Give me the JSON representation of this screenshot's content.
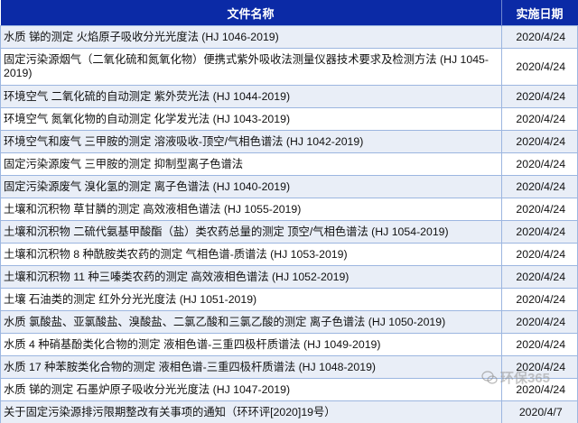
{
  "table": {
    "headers": [
      "文件名称",
      "实施日期"
    ],
    "rows": [
      {
        "name": "水质 锑的测定 火焰原子吸收分光光度法 (HJ 1046-2019)",
        "date": "2020/4/24"
      },
      {
        "name": "固定污染源烟气（二氧化硫和氮氧化物）便携式紫外吸收法测量仪器技术要求及检测方法 (HJ 1045-2019)",
        "date": "2020/4/24"
      },
      {
        "name": "环境空气 二氧化硫的自动测定 紫外荧光法 (HJ 1044-2019)",
        "date": "2020/4/24"
      },
      {
        "name": "环境空气 氮氧化物的自动测定 化学发光法 (HJ 1043-2019)",
        "date": "2020/4/24"
      },
      {
        "name": "环境空气和废气 三甲胺的测定 溶液吸收-顶空/气相色谱法 (HJ 1042-2019)",
        "date": "2020/4/24"
      },
      {
        "name": "固定污染源废气 三甲胺的测定 抑制型离子色谱法",
        "date": "2020/4/24"
      },
      {
        "name": "固定污染源废气 溴化氢的测定 离子色谱法 (HJ 1040-2019)",
        "date": "2020/4/24"
      },
      {
        "name": "土壤和沉积物 草甘膦的测定 高效液相色谱法 (HJ 1055-2019)",
        "date": "2020/4/24"
      },
      {
        "name": "土壤和沉积物 二硫代氨基甲酸酯（盐）类农药总量的测定 顶空/气相色谱法 (HJ 1054-2019)",
        "date": "2020/4/24"
      },
      {
        "name": "土壤和沉积物 8 种酰胺类农药的测定 气相色谱-质谱法 (HJ 1053-2019)",
        "date": "2020/4/24"
      },
      {
        "name": "土壤和沉积物 11 种三嗪类农药的测定 高效液相色谱法 (HJ 1052-2019)",
        "date": "2020/4/24"
      },
      {
        "name": "土壤 石油类的测定 红外分光光度法 (HJ 1051-2019)",
        "date": "2020/4/24"
      },
      {
        "name": "水质 氯酸盐、亚氯酸盐、溴酸盐、二氯乙酸和三氯乙酸的测定 离子色谱法 (HJ 1050-2019)",
        "date": "2020/4/24"
      },
      {
        "name": "水质 4 种硝基酚类化合物的测定 液相色谱-三重四极杆质谱法 (HJ 1049-2019)",
        "date": "2020/4/24"
      },
      {
        "name": "水质 17 种苯胺类化合物的测定 液相色谱-三重四极杆质谱法 (HJ 1048-2019)",
        "date": "2020/4/24"
      },
      {
        "name": "水质 锑的测定 石墨炉原子吸收分光光度法 (HJ 1047-2019)",
        "date": "2020/4/24"
      },
      {
        "name": "关于固定污染源排污限期整改有关事项的通知（环环评[2020]19号）",
        "date": "2020/4/7"
      }
    ]
  },
  "watermark": {
    "text": "环保365",
    "icon": "wechat-icon"
  },
  "colors": {
    "header_bg": "#0b2aa6",
    "alt_row": "#e9eef7",
    "border": "#9cb6e0"
  }
}
